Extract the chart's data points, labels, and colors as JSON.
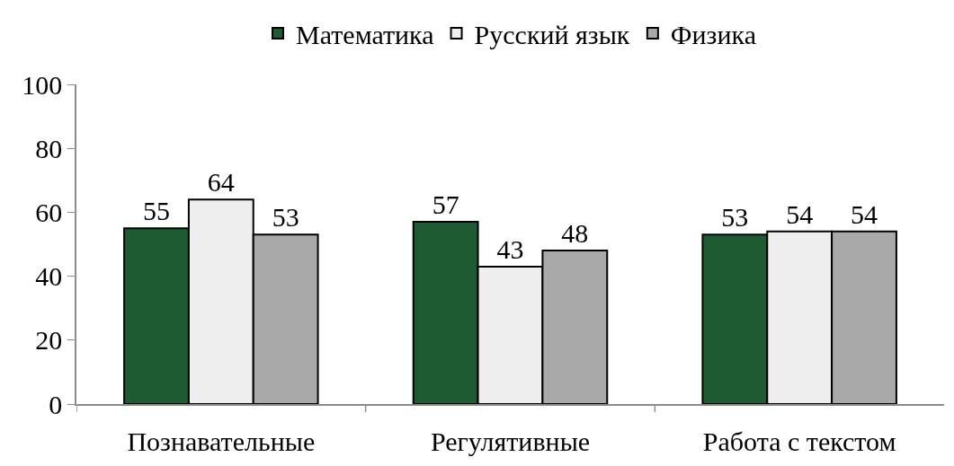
{
  "chart_data": {
    "type": "bar",
    "categories": [
      "Познавательные",
      "Регулятивные",
      "Работа с текстом"
    ],
    "series": [
      {
        "name": "Математика",
        "color": "#1e5a32",
        "values": [
          55,
          57,
          53
        ]
      },
      {
        "name": "Русский язык",
        "color": "#eeeeee",
        "values": [
          64,
          43,
          54
        ]
      },
      {
        "name": "Физика",
        "color": "#a9a9a9",
        "values": [
          53,
          48,
          54
        ]
      }
    ],
    "ylim": [
      0,
      100
    ],
    "yticks": [
      0,
      20,
      40,
      60,
      80,
      100
    ],
    "data_labels": true,
    "legend": "top"
  }
}
